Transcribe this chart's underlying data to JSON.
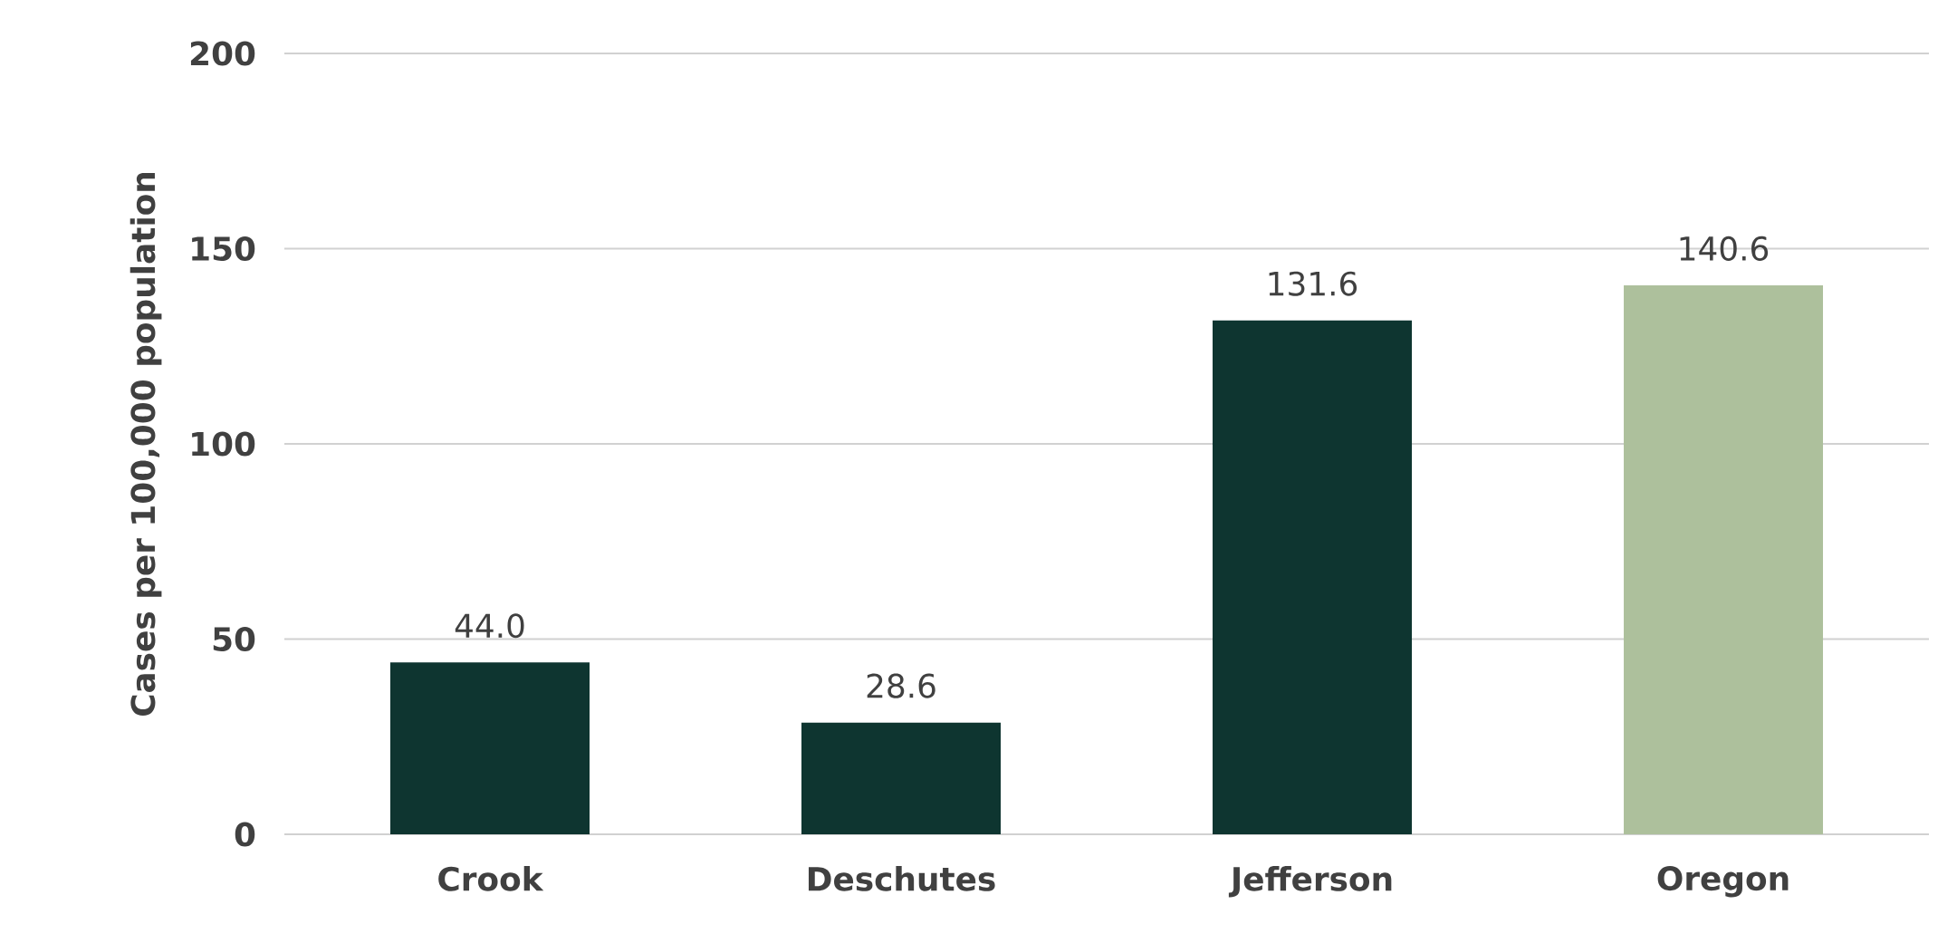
{
  "chart_data": {
    "type": "bar",
    "ylabel": "Cases per 100,000 population",
    "categories": [
      "Crook",
      "Deschutes",
      "Jefferson",
      "Oregon"
    ],
    "values": [
      44.0,
      28.6,
      131.6,
      140.6
    ],
    "colors": [
      "#0e3530",
      "#0e3530",
      "#0e3530",
      "#adc09c"
    ],
    "value_labels": [
      "44.0",
      "28.6",
      "131.6",
      "140.6"
    ],
    "ylim": [
      0,
      200
    ],
    "yticks": [
      0,
      50,
      100,
      150,
      200
    ],
    "grid": "y"
  }
}
